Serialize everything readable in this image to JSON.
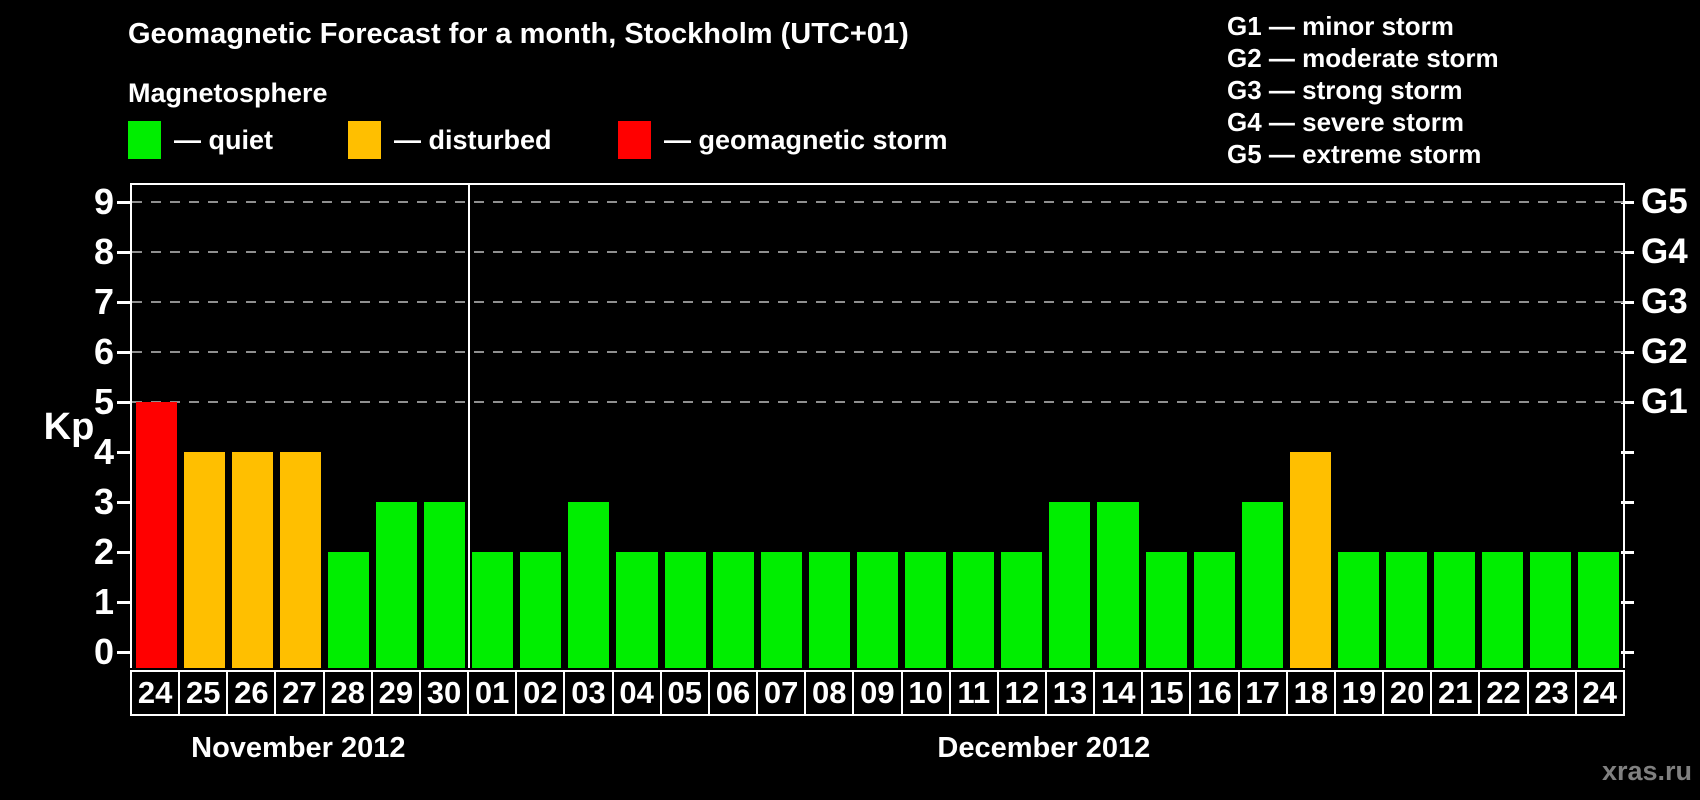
{
  "title": "Geomagnetic Forecast for a month, Stockholm (UTC+01)",
  "watermark": "xras.ru",
  "colors": {
    "quiet": "#00ee00",
    "disturbed": "#ffbf00",
    "storm": "#ff0000",
    "grid": "#8f8f8f",
    "axis": "#ffffff",
    "background": "#000000"
  },
  "legend": {
    "heading": "Magnetosphere",
    "items": [
      {
        "key": "quiet",
        "label": "— quiet"
      },
      {
        "key": "disturbed",
        "label": "— disturbed"
      },
      {
        "key": "storm",
        "label": "— geomagnetic storm"
      }
    ]
  },
  "g_legend": [
    "G1 — minor storm",
    "G2 — moderate storm",
    "G3 — strong storm",
    "G4 — severe storm",
    "G5 — extreme storm"
  ],
  "y_axis": {
    "label": "Kp",
    "ticks": [
      0,
      1,
      2,
      3,
      4,
      5,
      6,
      7,
      8,
      9
    ]
  },
  "right_axis": {
    "tick_values": [
      0,
      1,
      2,
      3,
      4,
      5,
      6,
      7,
      8,
      9
    ],
    "labels": [
      {
        "value": 5,
        "text": "G1"
      },
      {
        "value": 6,
        "text": "G2"
      },
      {
        "value": 7,
        "text": "G3"
      },
      {
        "value": 8,
        "text": "G4"
      },
      {
        "value": 9,
        "text": "G5"
      }
    ]
  },
  "months": [
    {
      "label": "November 2012",
      "days": 7
    },
    {
      "label": "December 2012",
      "days": 24
    }
  ],
  "chart_data": {
    "type": "bar",
    "title": "Geomagnetic Forecast for a month, Stockholm (UTC+01)",
    "xlabel": "",
    "ylabel": "Kp",
    "ylim": [
      0,
      9.4
    ],
    "grid": "dashed horizontal at 5,6,7,8,9",
    "grid_values": [
      5,
      6,
      7,
      8,
      9
    ],
    "legend_position": "top-left",
    "categories": [
      "24",
      "25",
      "26",
      "27",
      "28",
      "29",
      "30",
      "01",
      "02",
      "03",
      "04",
      "05",
      "06",
      "07",
      "08",
      "09",
      "10",
      "11",
      "12",
      "13",
      "14",
      "15",
      "16",
      "17",
      "18",
      "19",
      "20",
      "21",
      "22",
      "23",
      "24"
    ],
    "values": [
      5,
      4,
      4,
      4,
      2,
      3,
      3,
      2,
      2,
      3,
      2,
      2,
      2,
      2,
      2,
      2,
      2,
      2,
      2,
      3,
      3,
      2,
      2,
      3,
      4,
      2,
      2,
      2,
      2,
      2,
      2
    ],
    "statuses": [
      "storm",
      "disturbed",
      "disturbed",
      "disturbed",
      "quiet",
      "quiet",
      "quiet",
      "quiet",
      "quiet",
      "quiet",
      "quiet",
      "quiet",
      "quiet",
      "quiet",
      "quiet",
      "quiet",
      "quiet",
      "quiet",
      "quiet",
      "quiet",
      "quiet",
      "quiet",
      "quiet",
      "quiet",
      "disturbed",
      "quiet",
      "quiet",
      "quiet",
      "quiet",
      "quiet",
      "quiet"
    ]
  }
}
